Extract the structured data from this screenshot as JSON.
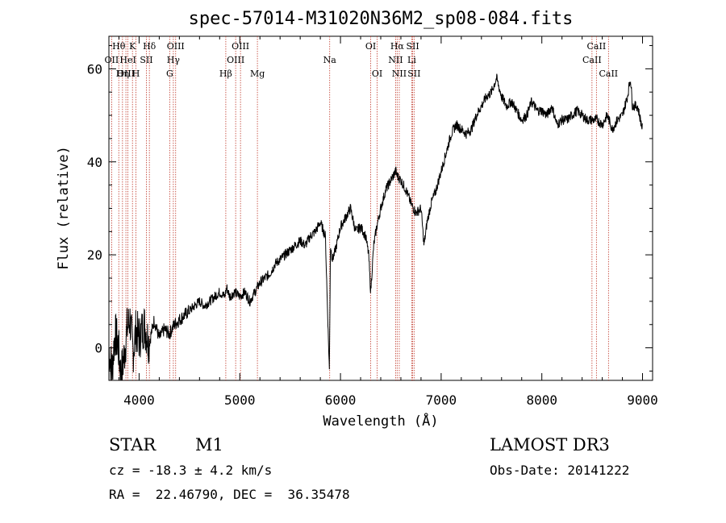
{
  "chart_data": {
    "type": "line",
    "title": "spec-57014-M31020N36M2_sp08-084.fits",
    "xlabel": "Wavelength (Å)",
    "ylabel": "Flux (relative)",
    "xlim": [
      3700,
      9100
    ],
    "ylim": [
      -7,
      67
    ],
    "xticks": [
      4000,
      5000,
      6000,
      7000,
      8000,
      9000
    ],
    "yticks": [
      0,
      20,
      40,
      60
    ],
    "series": [
      {
        "name": "spectrum",
        "x": [
          3700,
          3730,
          3760,
          3790,
          3820,
          3850,
          3880,
          3910,
          3940,
          3970,
          4000,
          4050,
          4100,
          4150,
          4200,
          4250,
          4300,
          4350,
          4400,
          4450,
          4500,
          4550,
          4600,
          4650,
          4700,
          4750,
          4800,
          4850,
          4870,
          4900,
          4950,
          5000,
          5050,
          5100,
          5150,
          5200,
          5250,
          5300,
          5350,
          5400,
          5450,
          5500,
          5550,
          5600,
          5650,
          5700,
          5750,
          5800,
          5850,
          5880,
          5890,
          5900,
          5920,
          5950,
          6000,
          6050,
          6100,
          6150,
          6200,
          6250,
          6280,
          6300,
          6330,
          6360,
          6400,
          6450,
          6500,
          6550,
          6563,
          6600,
          6650,
          6700,
          6750,
          6800,
          6830,
          6860,
          6900,
          6950,
          7000,
          7050,
          7100,
          7150,
          7200,
          7250,
          7300,
          7350,
          7400,
          7450,
          7500,
          7550,
          7600,
          7650,
          7700,
          7750,
          7800,
          7850,
          7900,
          7950,
          8000,
          8050,
          8100,
          8150,
          8200,
          8250,
          8300,
          8350,
          8400,
          8450,
          8500,
          8550,
          8600,
          8650,
          8700,
          8750,
          8800,
          8850,
          8880,
          8900,
          8950,
          8980,
          9000
        ],
        "y": [
          0,
          -5,
          3,
          1,
          -6,
          -2,
          4,
          6,
          -1,
          4,
          2,
          5,
          1,
          6,
          2,
          4,
          3,
          5,
          6,
          7,
          8,
          9,
          10,
          9,
          10,
          11,
          12,
          11,
          13,
          11,
          12,
          11,
          12,
          10,
          12,
          14,
          15,
          16,
          18,
          19,
          20,
          21,
          22,
          23,
          22,
          24,
          25,
          27,
          24,
          2,
          -5,
          22,
          19,
          21,
          26,
          28,
          30,
          25,
          26,
          24,
          20,
          12,
          22,
          26,
          30,
          34,
          36,
          38,
          37,
          36,
          34,
          31,
          29,
          30,
          22,
          27,
          31,
          34,
          38,
          42,
          46,
          48,
          47,
          46,
          47,
          50,
          52,
          54,
          55,
          58,
          54,
          52,
          53,
          51,
          49,
          50,
          53,
          51,
          51,
          50,
          52,
          48,
          49,
          49,
          50,
          51,
          50,
          49,
          49,
          49,
          48,
          50,
          47,
          49,
          50,
          54,
          58,
          52,
          52,
          49,
          47
        ]
      }
    ],
    "emission_lines": [
      {
        "label": "Hθ",
        "wl": 3798,
        "row": 0
      },
      {
        "label": "OII",
        "wl": 3727,
        "row": 1
      },
      {
        "label": "OIII",
        "wl": 3869,
        "row": 2
      },
      {
        "label": "K",
        "wl": 3934,
        "row": 0
      },
      {
        "label": "HeI",
        "wl": 3889,
        "row": 1
      },
      {
        "label": "Hη",
        "wl": 3835,
        "row": 2
      },
      {
        "label": "SII",
        "wl": 4072,
        "row": 1
      },
      {
        "label": "H",
        "wl": 3969,
        "row": 2
      },
      {
        "label": "Hδ",
        "wl": 4102,
        "row": 0
      },
      {
        "label": "OIII",
        "wl": 4363,
        "row": 0
      },
      {
        "label": "Hγ",
        "wl": 4340,
        "row": 1
      },
      {
        "label": "G",
        "wl": 4304,
        "row": 2
      },
      {
        "label": "OIII",
        "wl": 5007,
        "row": 0
      },
      {
        "label": "OIII",
        "wl": 4959,
        "row": 1
      },
      {
        "label": "Hβ",
        "wl": 4861,
        "row": 2
      },
      {
        "label": "Mg",
        "wl": 5175,
        "row": 2
      },
      {
        "label": "Na",
        "wl": 5893,
        "row": 1
      },
      {
        "label": "OI",
        "wl": 6300,
        "row": 0
      },
      {
        "label": "OI",
        "wl": 6364,
        "row": 2
      },
      {
        "label": "Hα",
        "wl": 6563,
        "row": 0
      },
      {
        "label": "NII",
        "wl": 6548,
        "row": 1
      },
      {
        "label": "NII",
        "wl": 6584,
        "row": 2
      },
      {
        "label": "SII",
        "wl": 6717,
        "row": 0
      },
      {
        "label": "Li",
        "wl": 6708,
        "row": 1
      },
      {
        "label": "SII",
        "wl": 6731,
        "row": 2
      },
      {
        "label": "CaII",
        "wl": 8542,
        "row": 0
      },
      {
        "label": "CaII",
        "wl": 8498,
        "row": 1
      },
      {
        "label": "CaII",
        "wl": 8662,
        "row": 2
      }
    ]
  },
  "info": {
    "class_label": "STAR",
    "subclass": "M1",
    "survey": "LAMOST DR3",
    "cz_line": "cz = -18.3 ± 4.2 km/s",
    "obs_date_line": "Obs-Date: 20141222",
    "radec_line": "RA =  22.46790, DEC =  36.35478"
  },
  "colors": {
    "line_marker": "#c0392b",
    "spectrum": "#000000"
  }
}
